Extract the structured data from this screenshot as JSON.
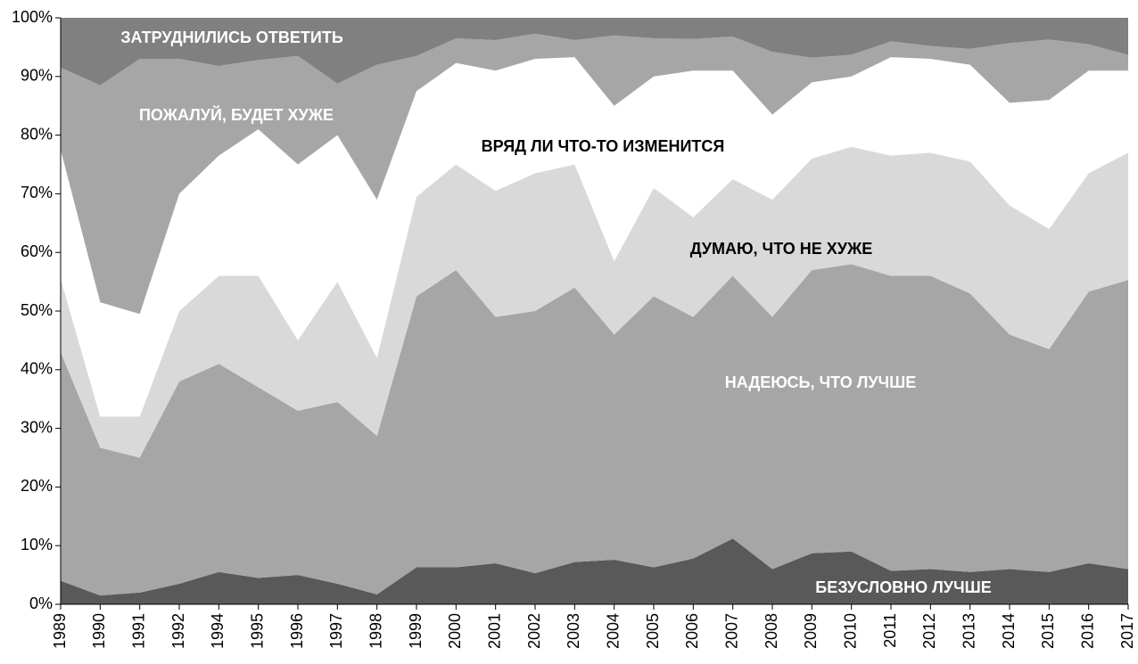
{
  "chart_data": {
    "type": "stacked_area",
    "categories": [
      "1989",
      "1990",
      "1991",
      "1992",
      "1994",
      "1995",
      "1996",
      "1997",
      "1998",
      "1999",
      "2000",
      "2001",
      "2002",
      "2003",
      "2004",
      "2005",
      "2006",
      "2007",
      "2008",
      "2009",
      "2010",
      "2011",
      "2012",
      "2013",
      "2014",
      "2015",
      "2016",
      "2017"
    ],
    "series": [
      {
        "name": "БЕЗУСЛОВНО  ЛУЧШЕ",
        "color": "#595959",
        "values": [
          4,
          1.5,
          2,
          3.5,
          5.5,
          4.5,
          5,
          3.5,
          1.7,
          6.3,
          6.3,
          7,
          5.3,
          7.2,
          7.6,
          6.3,
          7.8,
          11.2,
          6,
          8.7,
          9,
          5.7,
          6,
          5.5,
          6,
          5.5,
          7,
          6
        ]
      },
      {
        "name": "НАДЕЮСЬ, ЧТО ЛУЧШЕ",
        "color": "#a6a6a6",
        "values": [
          39,
          25.2,
          23,
          34.5,
          35.5,
          32.5,
          28,
          31,
          27,
          46.2,
          50.7,
          42,
          44.7,
          46.8,
          38.4,
          46.2,
          41.2,
          44.8,
          43,
          48.3,
          49,
          50.3,
          50,
          47.5,
          40,
          38,
          46.3,
          49.3
        ]
      },
      {
        "name": "ДУМАЮ, ЧТО НЕ ХУЖЕ",
        "color": "#d9d9d9",
        "values": [
          12.5,
          5.3,
          7,
          12,
          15,
          19,
          12,
          20.5,
          13.3,
          17,
          18,
          21.5,
          23.5,
          21,
          12.5,
          18.5,
          17,
          16.5,
          20,
          19,
          20,
          20.5,
          21,
          22.5,
          22,
          20.5,
          20.2,
          21.7
        ]
      },
      {
        "name": "ВРЯД  ЛИ ЧТО-ТО ИЗМЕНИТСЯ",
        "color": "#ffffff",
        "values": [
          22,
          19.5,
          17.5,
          20,
          20.5,
          25,
          30,
          25,
          27,
          18,
          17.3,
          20.5,
          19.5,
          18.3,
          26.5,
          19,
          25,
          18.5,
          14.5,
          13,
          12,
          16.8,
          16,
          16.5,
          17.5,
          22,
          17.5,
          14
        ]
      },
      {
        "name": "ПОЖАЛУЙ, БУДЕТ ХУЖЕ",
        "color": "#a6a6a6",
        "values": [
          14,
          37,
          43.5,
          23,
          15.3,
          11.8,
          18.5,
          8.8,
          23,
          6,
          4.2,
          5.2,
          4.3,
          2.9,
          12,
          6.5,
          5.4,
          5.8,
          10.7,
          4.2,
          3.7,
          2.7,
          2.2,
          2.7,
          10.2,
          10.3,
          4.5,
          2.7
        ]
      },
      {
        "name": "ЗАТРУДНИЛИСЬ ОТВЕТИТЬ",
        "color": "#808080",
        "values": [
          8.5,
          11.5,
          7,
          7,
          8.2,
          7.2,
          6.5,
          11.2,
          8,
          6.5,
          3.5,
          3.8,
          2.7,
          3.8,
          3,
          3.5,
          3.6,
          3.2,
          5.8,
          6.8,
          6.3,
          4,
          4.8,
          5.3,
          4.3,
          3.7,
          4.5,
          6.3
        ]
      }
    ],
    "ylim": [
      0,
      100
    ],
    "yticks": [
      {
        "value": 0,
        "label": "0%"
      },
      {
        "value": 10,
        "label": "10%"
      },
      {
        "value": 20,
        "label": "20%"
      },
      {
        "value": 30,
        "label": "30%"
      },
      {
        "value": 40,
        "label": "40%"
      },
      {
        "value": 50,
        "label": "50%"
      },
      {
        "value": 60,
        "label": "60%"
      },
      {
        "value": 70,
        "label": "70%"
      },
      {
        "value": 80,
        "label": "80%"
      },
      {
        "value": 90,
        "label": "90%"
      },
      {
        "value": 100,
        "label": "100%"
      }
    ]
  }
}
